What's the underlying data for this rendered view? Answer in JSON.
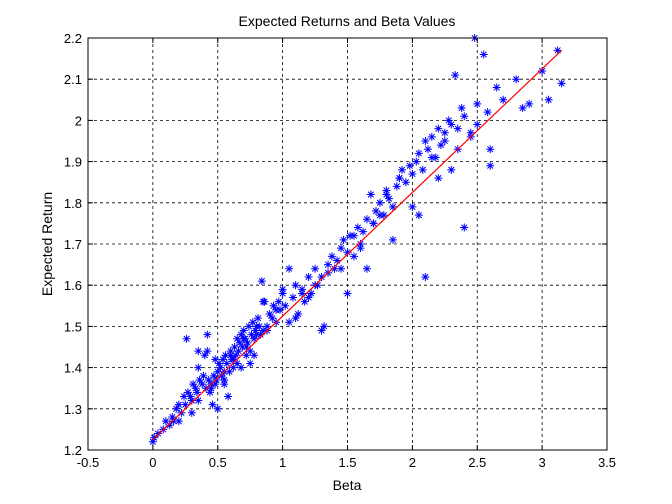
{
  "chart_data": {
    "type": "scatter",
    "title": "Expected Returns and Beta Values",
    "xlabel": "Beta",
    "ylabel": "Expected Return",
    "xlim": [
      -0.5,
      3.5
    ],
    "ylim": [
      1.2,
      2.2
    ],
    "x_ticks": [
      "-0.5",
      "0",
      "0.5",
      "1",
      "1.5",
      "2",
      "2.5",
      "3",
      "3.5"
    ],
    "y_ticks": [
      "1.2",
      "1.3",
      "1.4",
      "1.5",
      "1.6",
      "1.7",
      "1.8",
      "1.9",
      "2",
      "2.1",
      "2.2"
    ],
    "grid": true,
    "legend": "none",
    "colors": {
      "points": "#0000ff",
      "fit_line": "#ff0000",
      "background": "#ffffff",
      "axes": "#000000"
    },
    "series": [
      {
        "marker": "asterisk",
        "x": [
          0.0,
          0.01,
          0.04,
          0.08,
          0.1,
          0.13,
          0.15,
          0.16,
          0.18,
          0.2,
          0.22,
          0.24,
          0.26,
          0.27,
          0.29,
          0.3,
          0.31,
          0.33,
          0.34,
          0.35,
          0.36,
          0.38,
          0.39,
          0.4,
          0.41,
          0.42,
          0.43,
          0.44,
          0.45,
          0.46,
          0.47,
          0.48,
          0.49,
          0.5,
          0.51,
          0.52,
          0.53,
          0.54,
          0.55,
          0.56,
          0.57,
          0.58,
          0.59,
          0.6,
          0.61,
          0.62,
          0.63,
          0.64,
          0.65,
          0.66,
          0.67,
          0.68,
          0.69,
          0.7,
          0.71,
          0.72,
          0.73,
          0.74,
          0.75,
          0.76,
          0.77,
          0.78,
          0.79,
          0.8,
          0.81,
          0.82,
          0.84,
          0.85,
          0.86,
          0.88,
          0.9,
          0.92,
          0.93,
          0.95,
          0.97,
          1.0,
          1.02,
          1.05,
          1.08,
          1.1,
          1.12,
          1.15,
          1.17,
          1.2,
          1.22,
          1.25,
          1.27,
          1.3,
          1.32,
          1.35,
          1.38,
          1.4,
          1.42,
          1.45,
          1.47,
          1.5,
          1.52,
          1.55,
          1.58,
          1.6,
          1.62,
          1.65,
          1.68,
          1.7,
          1.72,
          1.75,
          1.78,
          1.8,
          1.82,
          1.85,
          1.88,
          1.9,
          1.92,
          1.95,
          1.98,
          2.0,
          2.03,
          2.05,
          2.08,
          2.1,
          2.12,
          2.15,
          2.18,
          2.2,
          2.22,
          2.25,
          2.28,
          2.3,
          2.33,
          2.35,
          2.38,
          2.4,
          2.45,
          2.48,
          2.5,
          2.55,
          2.58,
          2.6,
          2.65,
          2.7,
          2.8,
          2.85,
          2.9,
          3.0,
          3.05,
          3.12,
          3.15,
          0.25,
          0.3,
          0.35,
          0.42,
          0.48,
          0.55,
          0.6,
          0.65,
          0.7,
          0.75,
          0.8,
          0.85,
          0.95,
          1.0,
          1.1,
          1.2,
          1.3,
          1.45,
          1.55,
          1.65,
          1.75,
          1.85,
          2.0,
          2.1,
          2.2,
          2.3,
          2.4,
          0.2,
          0.35,
          0.45,
          0.5,
          0.55,
          0.62,
          0.68,
          0.72,
          0.78,
          0.83,
          0.88,
          0.98,
          1.05,
          1.15,
          1.25,
          1.35,
          1.5,
          1.6,
          1.7,
          1.8,
          1.9,
          2.05,
          2.15,
          2.25,
          2.35,
          2.45,
          2.5,
          2.6
        ],
        "y": [
          1.22,
          1.23,
          1.24,
          1.25,
          1.27,
          1.26,
          1.28,
          1.27,
          1.3,
          1.31,
          1.29,
          1.33,
          1.47,
          1.34,
          1.33,
          1.32,
          1.36,
          1.35,
          1.34,
          1.44,
          1.37,
          1.36,
          1.38,
          1.43,
          1.35,
          1.48,
          1.37,
          1.34,
          1.36,
          1.31,
          1.38,
          1.42,
          1.37,
          1.39,
          1.41,
          1.4,
          1.38,
          1.42,
          1.36,
          1.43,
          1.41,
          1.33,
          1.39,
          1.44,
          1.42,
          1.4,
          1.45,
          1.43,
          1.47,
          1.44,
          1.46,
          1.48,
          1.45,
          1.49,
          1.47,
          1.43,
          1.46,
          1.5,
          1.44,
          1.48,
          1.51,
          1.47,
          1.49,
          1.48,
          1.52,
          1.5,
          1.61,
          1.49,
          1.56,
          1.5,
          1.53,
          1.52,
          1.55,
          1.54,
          1.56,
          1.58,
          1.55,
          1.64,
          1.57,
          1.6,
          1.53,
          1.59,
          1.56,
          1.62,
          1.58,
          1.64,
          1.6,
          1.62,
          1.5,
          1.65,
          1.67,
          1.64,
          1.66,
          1.69,
          1.71,
          1.68,
          1.72,
          1.67,
          1.74,
          1.7,
          1.73,
          1.76,
          1.82,
          1.75,
          1.78,
          1.8,
          1.77,
          1.83,
          1.81,
          1.79,
          1.84,
          1.86,
          1.88,
          1.85,
          1.89,
          1.87,
          1.9,
          1.92,
          1.88,
          1.95,
          1.93,
          1.96,
          1.91,
          1.98,
          1.94,
          1.97,
          2.0,
          1.99,
          2.11,
          1.98,
          2.03,
          2.01,
          1.96,
          2.2,
          2.04,
          2.16,
          2.02,
          1.93,
          2.08,
          2.05,
          2.1,
          2.03,
          2.04,
          2.12,
          2.05,
          2.17,
          2.09,
          1.31,
          1.29,
          1.4,
          1.44,
          1.36,
          1.39,
          1.43,
          1.41,
          1.47,
          1.41,
          1.5,
          1.56,
          1.51,
          1.59,
          1.52,
          1.57,
          1.49,
          1.64,
          1.72,
          1.64,
          1.77,
          1.71,
          1.79,
          1.62,
          1.86,
          1.88,
          1.74,
          1.27,
          1.32,
          1.35,
          1.3,
          1.37,
          1.42,
          1.4,
          1.45,
          1.43,
          1.48,
          1.49,
          1.54,
          1.51,
          1.58,
          1.6,
          1.63,
          1.58,
          1.69,
          1.75,
          1.82,
          1.86,
          1.77,
          1.91,
          1.95,
          1.93,
          1.97,
          1.99,
          1.89
        ]
      }
    ],
    "fit_line": {
      "x": [
        0,
        3.15
      ],
      "y": [
        1.225,
        2.17
      ]
    }
  }
}
